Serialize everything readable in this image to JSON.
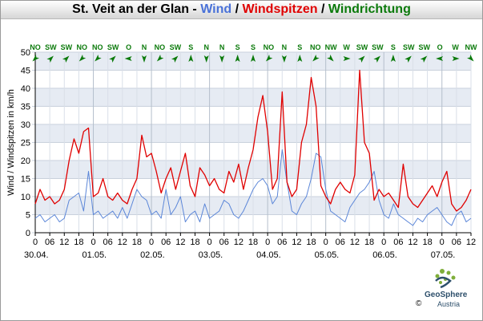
{
  "title": {
    "place": "St. Veit an der Glan",
    "sep1": " - ",
    "wind": "Wind",
    "slash": " / ",
    "gusts": "Windspitzen",
    "direction": "Windrichtung"
  },
  "logo": {
    "name": "GeoSphere",
    "country": "Austria",
    "copyright": "©"
  },
  "colors": {
    "wind": "#5b86d8",
    "gusts": "#e00000",
    "direction": "#0b7a0b",
    "band": "#e6ebf3"
  },
  "chart_data": {
    "type": "line",
    "ylabel": "Wind / Windspitzen in km/h",
    "ylim": [
      0,
      50
    ],
    "yticks": [
      0,
      5,
      10,
      15,
      20,
      25,
      30,
      35,
      40,
      45,
      50
    ],
    "hour_ticks": [
      "0",
      "06",
      "12",
      "18",
      "0",
      "06",
      "12",
      "18",
      "0",
      "06",
      "12",
      "18",
      "0",
      "06",
      "12",
      "18",
      "0",
      "06",
      "12",
      "18",
      "0",
      "06",
      "12",
      "18",
      "0",
      "06",
      "12",
      "18",
      "0",
      "06",
      "12"
    ],
    "date_labels": [
      "30.04.",
      "01.05.",
      "02.05.",
      "03.05.",
      "04.05.",
      "05.05.",
      "06.05.",
      "07.05."
    ],
    "x_range_hours": [
      0,
      180
    ],
    "series": [
      {
        "name": "Wind",
        "x": [
          0,
          2,
          4,
          6,
          8,
          10,
          12,
          14,
          16,
          18,
          20,
          22,
          24,
          26,
          28,
          30,
          32,
          34,
          36,
          38,
          40,
          42,
          44,
          46,
          48,
          50,
          52,
          54,
          56,
          58,
          60,
          62,
          64,
          66,
          68,
          70,
          72,
          74,
          76,
          78,
          80,
          82,
          84,
          86,
          88,
          90,
          92,
          94,
          96,
          98,
          100,
          102,
          104,
          106,
          108,
          110,
          112,
          114,
          116,
          118,
          120,
          122,
          124,
          126,
          128,
          130,
          132,
          134,
          136,
          138,
          140,
          142,
          144,
          146,
          148,
          150,
          152,
          154,
          156,
          158,
          160,
          162,
          164,
          166,
          168,
          170,
          172,
          174,
          176,
          178,
          180
        ],
        "values": [
          4,
          5,
          3,
          4,
          5,
          3,
          4,
          9,
          10,
          11,
          6,
          17,
          5,
          6,
          4,
          5,
          6,
          4,
          7,
          4,
          8,
          12,
          10,
          9,
          5,
          6,
          4,
          12,
          5,
          7,
          10,
          3,
          5,
          6,
          3,
          8,
          4,
          5,
          6,
          9,
          8,
          5,
          4,
          6,
          9,
          12,
          14,
          15,
          13,
          8,
          10,
          23,
          14,
          6,
          5,
          8,
          10,
          15,
          22,
          21,
          12,
          6,
          5,
          4,
          3,
          7,
          9,
          11,
          12,
          14,
          17,
          9,
          5,
          4,
          8,
          5,
          4,
          3,
          2,
          4,
          3,
          5,
          6,
          7,
          5,
          3,
          2,
          5,
          6,
          3,
          4
        ]
      },
      {
        "name": "Windspitzen",
        "x": [
          0,
          2,
          4,
          6,
          8,
          10,
          12,
          14,
          16,
          18,
          20,
          22,
          24,
          26,
          28,
          30,
          32,
          34,
          36,
          38,
          40,
          42,
          44,
          46,
          48,
          50,
          52,
          54,
          56,
          58,
          60,
          62,
          64,
          66,
          68,
          70,
          72,
          74,
          76,
          78,
          80,
          82,
          84,
          86,
          88,
          90,
          92,
          94,
          96,
          98,
          100,
          102,
          104,
          106,
          108,
          110,
          112,
          114,
          116,
          118,
          120,
          122,
          124,
          126,
          128,
          130,
          132,
          134,
          136,
          138,
          140,
          142,
          144,
          146,
          148,
          150,
          152,
          154,
          156,
          158,
          160,
          162,
          164,
          166,
          168,
          170,
          172,
          174,
          176,
          178,
          180
        ],
        "values": [
          8,
          12,
          9,
          10,
          8,
          9,
          12,
          20,
          26,
          22,
          28,
          29,
          10,
          11,
          15,
          10,
          9,
          11,
          9,
          8,
          12,
          15,
          27,
          21,
          22,
          17,
          11,
          15,
          18,
          12,
          17,
          22,
          13,
          10,
          18,
          16,
          13,
          15,
          12,
          11,
          17,
          14,
          19,
          12,
          18,
          23,
          32,
          38,
          28,
          12,
          15,
          39,
          14,
          10,
          12,
          25,
          30,
          43,
          35,
          13,
          10,
          8,
          12,
          14,
          12,
          11,
          16,
          45,
          25,
          22,
          9,
          12,
          10,
          11,
          9,
          7,
          19,
          10,
          8,
          7,
          9,
          11,
          13,
          10,
          14,
          17,
          8,
          6,
          7,
          9,
          12
        ]
      },
      {
        "name": "Windrichtung",
        "labels": [
          "NO",
          "SW",
          "SW",
          "NO",
          "NO",
          "SW",
          "O",
          "N",
          "NO",
          "SW",
          "S",
          "N",
          "N",
          "S",
          "S",
          "NO",
          "N",
          "S",
          "NO",
          "NW",
          "W",
          "SW",
          "SW",
          "S",
          "SW",
          "SW",
          "O",
          "W",
          "NW"
        ]
      }
    ],
    "legend": "title",
    "grid": true
  }
}
